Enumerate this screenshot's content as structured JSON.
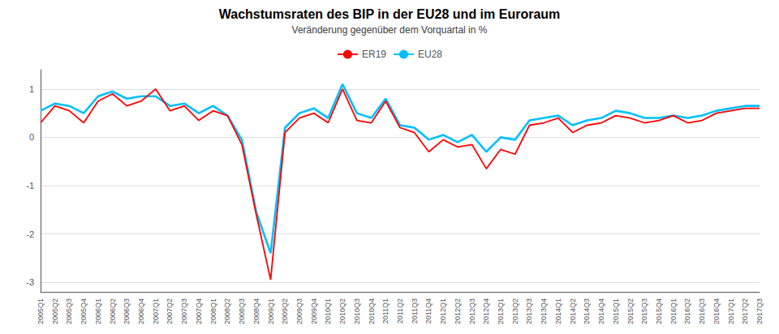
{
  "chart_data": {
    "type": "line",
    "title": "Wachstumsraten des BIP in der EU28 und im Euroraum",
    "subtitle": "Veränderung gegenüber dem Vorquartal in %",
    "categories": [
      "2005Q1",
      "2005Q2",
      "2005Q3",
      "2005Q4",
      "2006Q1",
      "2006Q2",
      "2006Q3",
      "2006Q4",
      "2007Q1",
      "2007Q2",
      "2007Q3",
      "2007Q4",
      "2008Q1",
      "2008Q2",
      "2008Q3",
      "2008Q4",
      "2009Q1",
      "2009Q2",
      "2009Q3",
      "2009Q4",
      "2010Q1",
      "2010Q2",
      "2010Q3",
      "2010Q4",
      "2011Q1",
      "2011Q2",
      "2011Q3",
      "2011Q4",
      "2012Q1",
      "2012Q2",
      "2012Q3",
      "2012Q4",
      "2013Q1",
      "2013Q2",
      "2013Q3",
      "2013Q4",
      "2014Q1",
      "2014Q2",
      "2014Q3",
      "2014Q4",
      "2015Q1",
      "2015Q2",
      "2015Q3",
      "2015Q4",
      "2016Q1",
      "2016Q2",
      "2016Q3",
      "2016Q4",
      "2017Q1",
      "2017Q2",
      "2017Q3"
    ],
    "series": [
      {
        "name": "ER19",
        "color": "#FF0000",
        "values": [
          0.3,
          0.65,
          0.55,
          0.3,
          0.75,
          0.9,
          0.65,
          0.75,
          1.0,
          0.55,
          0.65,
          0.35,
          0.55,
          0.45,
          -0.15,
          -1.6,
          -2.95,
          0.1,
          0.4,
          0.5,
          0.3,
          1.0,
          0.35,
          0.3,
          0.75,
          0.2,
          0.1,
          -0.3,
          -0.05,
          -0.2,
          -0.15,
          -0.65,
          -0.25,
          -0.35,
          0.25,
          0.3,
          0.4,
          0.1,
          0.25,
          0.3,
          0.45,
          0.4,
          0.3,
          0.35,
          0.45,
          0.3,
          0.35,
          0.5,
          0.55,
          0.6,
          0.6
        ]
      },
      {
        "name": "EU28",
        "color": "#00BFFF",
        "values": [
          0.55,
          0.7,
          0.65,
          0.5,
          0.85,
          0.95,
          0.8,
          0.85,
          0.85,
          0.65,
          0.7,
          0.5,
          0.65,
          0.45,
          -0.05,
          -1.55,
          -2.4,
          0.2,
          0.5,
          0.6,
          0.4,
          1.1,
          0.5,
          0.4,
          0.8,
          0.25,
          0.2,
          -0.05,
          0.05,
          -0.1,
          0.05,
          -0.3,
          0.0,
          -0.05,
          0.35,
          0.4,
          0.45,
          0.25,
          0.35,
          0.4,
          0.55,
          0.5,
          0.4,
          0.4,
          0.45,
          0.4,
          0.45,
          0.55,
          0.6,
          0.65,
          0.65
        ]
      }
    ],
    "ylim": [
      -3.2,
      1.4
    ],
    "yticks": [
      -3,
      -2,
      -1,
      0,
      1
    ],
    "grid": true,
    "legend": "top"
  }
}
